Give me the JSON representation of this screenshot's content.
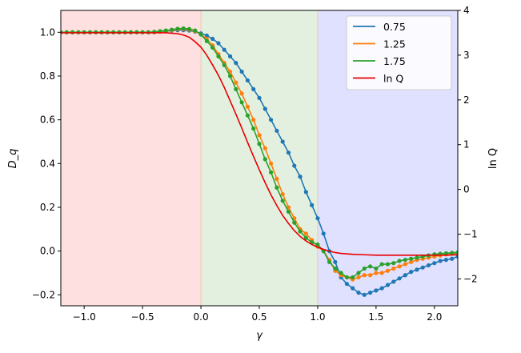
{
  "chart_data": {
    "type": "line",
    "title": "",
    "xlabel": "γ",
    "ylabel": "D_q",
    "ylabel_right": "ln Q",
    "xlim": [
      -1.2,
      2.2
    ],
    "ylim": [
      -0.25,
      1.1
    ],
    "ylim_right": [
      -2.6,
      4
    ],
    "xticks": [
      "−1.0",
      "−0.5",
      "0.0",
      "0.5",
      "1.0",
      "1.5",
      "2.0"
    ],
    "yticks": [
      "−0.2",
      "0.0",
      "0.2",
      "0.4",
      "0.6",
      "0.8",
      "1.0"
    ],
    "yticks_right": [
      "−2",
      "−1",
      "0",
      "1",
      "2",
      "3",
      "4"
    ],
    "grid": false,
    "legend_position": "top-right",
    "regions": [
      {
        "x0": -1.2,
        "x1": 0.0,
        "color": "#ffe0e0"
      },
      {
        "x0": 0.0,
        "x1": 1.0,
        "color": "#e3f0e0"
      },
      {
        "x0": 1.0,
        "x1": 2.2,
        "color": "#e0e0ff"
      }
    ],
    "series": [
      {
        "name": "0.75",
        "color": "#1f77b4",
        "axis": "left",
        "markers": true,
        "x": [
          -1.2,
          -1.15,
          -1.1,
          -1.05,
          -1.0,
          -0.95,
          -0.9,
          -0.85,
          -0.8,
          -0.75,
          -0.7,
          -0.65,
          -0.6,
          -0.55,
          -0.5,
          -0.45,
          -0.4,
          -0.35,
          -0.3,
          -0.25,
          -0.2,
          -0.15,
          -0.1,
          -0.05,
          0.0,
          0.05,
          0.1,
          0.15,
          0.2,
          0.25,
          0.3,
          0.35,
          0.4,
          0.45,
          0.5,
          0.55,
          0.6,
          0.65,
          0.7,
          0.75,
          0.8,
          0.85,
          0.9,
          0.95,
          1.0,
          1.05,
          1.1,
          1.15,
          1.2,
          1.25,
          1.3,
          1.35,
          1.4,
          1.45,
          1.5,
          1.55,
          1.6,
          1.65,
          1.7,
          1.75,
          1.8,
          1.85,
          1.9,
          1.95,
          2.0,
          2.05,
          2.1,
          2.15,
          2.2
        ],
        "y": [
          1.0,
          1.0,
          1.0,
          1.0,
          1.0,
          1.0,
          1.0,
          1.0,
          1.0,
          1.0,
          1.0,
          1.0,
          1.0,
          1.0,
          1.0,
          1.0,
          1.0,
          1.003,
          1.005,
          1.008,
          1.01,
          1.01,
          1.008,
          1.003,
          0.995,
          0.985,
          0.97,
          0.95,
          0.92,
          0.89,
          0.86,
          0.82,
          0.78,
          0.74,
          0.7,
          0.65,
          0.6,
          0.55,
          0.5,
          0.45,
          0.39,
          0.34,
          0.27,
          0.21,
          0.15,
          0.08,
          0.0,
          -0.05,
          -0.12,
          -0.15,
          -0.17,
          -0.19,
          -0.2,
          -0.19,
          -0.18,
          -0.17,
          -0.155,
          -0.14,
          -0.125,
          -0.11,
          -0.095,
          -0.085,
          -0.075,
          -0.065,
          -0.055,
          -0.045,
          -0.04,
          -0.035,
          -0.025
        ]
      },
      {
        "name": "1.25",
        "color": "#ff7f0e",
        "axis": "left",
        "markers": true,
        "x": [
          -1.2,
          -1.15,
          -1.1,
          -1.05,
          -1.0,
          -0.95,
          -0.9,
          -0.85,
          -0.8,
          -0.75,
          -0.7,
          -0.65,
          -0.6,
          -0.55,
          -0.5,
          -0.45,
          -0.4,
          -0.35,
          -0.3,
          -0.25,
          -0.2,
          -0.15,
          -0.1,
          -0.05,
          0.0,
          0.05,
          0.1,
          0.15,
          0.2,
          0.25,
          0.3,
          0.35,
          0.4,
          0.45,
          0.5,
          0.55,
          0.6,
          0.65,
          0.7,
          0.75,
          0.8,
          0.85,
          0.9,
          0.95,
          1.0,
          1.05,
          1.1,
          1.15,
          1.2,
          1.25,
          1.3,
          1.35,
          1.4,
          1.45,
          1.5,
          1.55,
          1.6,
          1.65,
          1.7,
          1.75,
          1.8,
          1.85,
          1.9,
          1.95,
          2.0,
          2.05,
          2.1,
          2.15,
          2.2
        ],
        "y": [
          1.0,
          1.0,
          1.0,
          1.0,
          1.0,
          1.0,
          1.0,
          1.0,
          1.0,
          1.0,
          1.0,
          1.0,
          1.0,
          1.0,
          1.0,
          1.0,
          1.0,
          1.003,
          1.006,
          1.01,
          1.014,
          1.015,
          1.012,
          1.005,
          0.99,
          0.97,
          0.94,
          0.9,
          0.86,
          0.82,
          0.77,
          0.72,
          0.66,
          0.6,
          0.53,
          0.47,
          0.4,
          0.33,
          0.26,
          0.2,
          0.15,
          0.1,
          0.08,
          0.05,
          0.02,
          0.0,
          -0.04,
          -0.09,
          -0.11,
          -0.12,
          -0.13,
          -0.12,
          -0.11,
          -0.11,
          -0.1,
          -0.1,
          -0.09,
          -0.08,
          -0.07,
          -0.06,
          -0.05,
          -0.04,
          -0.035,
          -0.03,
          -0.025,
          -0.02,
          -0.015,
          -0.012,
          -0.01
        ]
      },
      {
        "name": "1.75",
        "color": "#2ca02c",
        "axis": "left",
        "markers": true,
        "x": [
          -1.2,
          -1.15,
          -1.1,
          -1.05,
          -1.0,
          -0.95,
          -0.9,
          -0.85,
          -0.8,
          -0.75,
          -0.7,
          -0.65,
          -0.6,
          -0.55,
          -0.5,
          -0.45,
          -0.4,
          -0.35,
          -0.3,
          -0.25,
          -0.2,
          -0.15,
          -0.1,
          -0.05,
          0.0,
          0.05,
          0.1,
          0.15,
          0.2,
          0.25,
          0.3,
          0.35,
          0.4,
          0.45,
          0.5,
          0.55,
          0.6,
          0.65,
          0.7,
          0.75,
          0.8,
          0.85,
          0.9,
          0.95,
          1.0,
          1.05,
          1.1,
          1.15,
          1.2,
          1.25,
          1.3,
          1.35,
          1.4,
          1.45,
          1.5,
          1.55,
          1.6,
          1.65,
          1.7,
          1.75,
          1.8,
          1.85,
          1.9,
          1.95,
          2.0,
          2.05,
          2.1,
          2.15,
          2.2
        ],
        "y": [
          1.0,
          1.0,
          1.0,
          1.0,
          1.0,
          1.0,
          1.0,
          1.0,
          1.0,
          1.0,
          1.0,
          1.0,
          1.0,
          1.0,
          1.0,
          1.0,
          1.002,
          1.005,
          1.008,
          1.012,
          1.016,
          1.018,
          1.015,
          1.008,
          0.99,
          0.96,
          0.93,
          0.89,
          0.85,
          0.8,
          0.74,
          0.68,
          0.62,
          0.56,
          0.49,
          0.42,
          0.36,
          0.29,
          0.23,
          0.18,
          0.13,
          0.09,
          0.06,
          0.04,
          0.03,
          0.0,
          -0.05,
          -0.08,
          -0.1,
          -0.12,
          -0.12,
          -0.1,
          -0.08,
          -0.07,
          -0.08,
          -0.06,
          -0.06,
          -0.055,
          -0.045,
          -0.04,
          -0.035,
          -0.03,
          -0.025,
          -0.02,
          -0.015,
          -0.012,
          -0.01,
          -0.008,
          -0.006
        ]
      },
      {
        "name": "ln Q",
        "color": "#e80000",
        "axis": "right",
        "markers": false,
        "x": [
          -1.2,
          -1.1,
          -1.0,
          -0.9,
          -0.8,
          -0.7,
          -0.6,
          -0.5,
          -0.4,
          -0.3,
          -0.2,
          -0.15,
          -0.1,
          -0.05,
          0.0,
          0.05,
          0.1,
          0.15,
          0.2,
          0.25,
          0.3,
          0.35,
          0.4,
          0.45,
          0.5,
          0.55,
          0.6,
          0.65,
          0.7,
          0.75,
          0.8,
          0.85,
          0.9,
          0.95,
          1.0,
          1.05,
          1.1,
          1.15,
          1.2,
          1.3,
          1.4,
          1.5,
          1.6,
          1.7,
          1.8,
          1.9,
          2.0,
          2.1,
          2.2
        ],
        "y": [
          3.5,
          3.5,
          3.5,
          3.5,
          3.5,
          3.5,
          3.5,
          3.5,
          3.5,
          3.5,
          3.48,
          3.45,
          3.4,
          3.3,
          3.18,
          3.0,
          2.78,
          2.55,
          2.28,
          1.98,
          1.68,
          1.37,
          1.05,
          0.74,
          0.44,
          0.15,
          -0.12,
          -0.36,
          -0.58,
          -0.76,
          -0.92,
          -1.05,
          -1.15,
          -1.23,
          -1.29,
          -1.34,
          -1.38,
          -1.41,
          -1.43,
          -1.45,
          -1.46,
          -1.47,
          -1.47,
          -1.47,
          -1.47,
          -1.47,
          -1.47,
          -1.47,
          -1.46
        ]
      }
    ]
  }
}
